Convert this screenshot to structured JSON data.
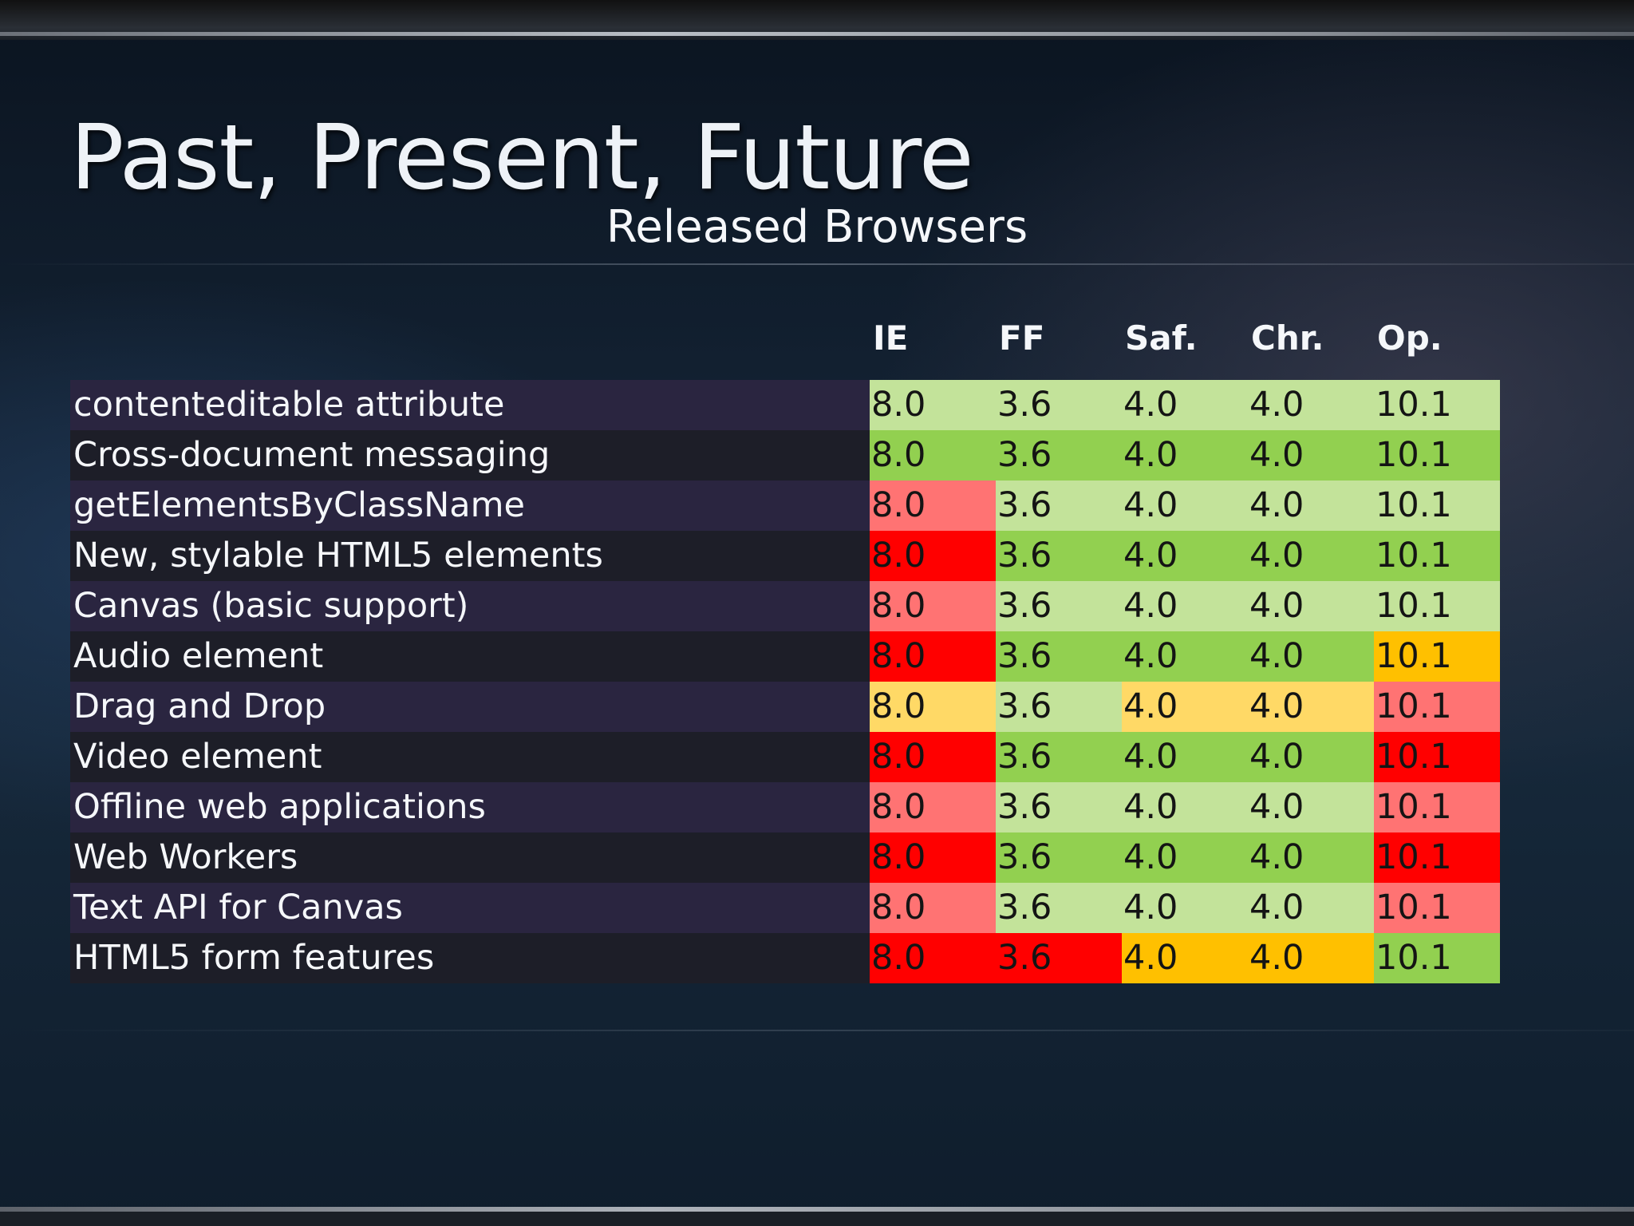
{
  "slide": {
    "title": "Past, Present, Future",
    "subtitle": "Released Browsers"
  },
  "colors": {
    "light_green": "#c3e39a",
    "green": "#92d050",
    "light_red": "#ff7373",
    "red": "#ff0000",
    "yellow": "#ffd966",
    "orange": "#ffc000"
  },
  "table": {
    "columns": [
      "IE",
      "FF",
      "Saf.",
      "Chr.",
      "Op."
    ],
    "rows": [
      {
        "feature": "contenteditable attribute",
        "values": [
          "8.0",
          "3.6",
          "4.0",
          "4.0",
          "10.1"
        ],
        "status": [
          "light_green",
          "light_green",
          "light_green",
          "light_green",
          "light_green"
        ]
      },
      {
        "feature": "Cross-document messaging",
        "values": [
          "8.0",
          "3.6",
          "4.0",
          "4.0",
          "10.1"
        ],
        "status": [
          "green",
          "green",
          "green",
          "green",
          "green"
        ]
      },
      {
        "feature": "getElementsByClassName",
        "values": [
          "8.0",
          "3.6",
          "4.0",
          "4.0",
          "10.1"
        ],
        "status": [
          "light_red",
          "light_green",
          "light_green",
          "light_green",
          "light_green"
        ]
      },
      {
        "feature": "New, stylable HTML5 elements",
        "values": [
          "8.0",
          "3.6",
          "4.0",
          "4.0",
          "10.1"
        ],
        "status": [
          "red",
          "green",
          "green",
          "green",
          "green"
        ]
      },
      {
        "feature": "Canvas (basic support)",
        "values": [
          "8.0",
          "3.6",
          "4.0",
          "4.0",
          "10.1"
        ],
        "status": [
          "light_red",
          "light_green",
          "light_green",
          "light_green",
          "light_green"
        ]
      },
      {
        "feature": "Audio element",
        "values": [
          "8.0",
          "3.6",
          "4.0",
          "4.0",
          "10.1"
        ],
        "status": [
          "red",
          "green",
          "green",
          "green",
          "orange"
        ]
      },
      {
        "feature": "Drag and Drop",
        "values": [
          "8.0",
          "3.6",
          "4.0",
          "4.0",
          "10.1"
        ],
        "status": [
          "yellow",
          "light_green",
          "yellow",
          "yellow",
          "light_red"
        ]
      },
      {
        "feature": "Video element",
        "values": [
          "8.0",
          "3.6",
          "4.0",
          "4.0",
          "10.1"
        ],
        "status": [
          "red",
          "green",
          "green",
          "green",
          "red"
        ]
      },
      {
        "feature": "Offline web applications",
        "values": [
          "8.0",
          "3.6",
          "4.0",
          "4.0",
          "10.1"
        ],
        "status": [
          "light_red",
          "light_green",
          "light_green",
          "light_green",
          "light_red"
        ]
      },
      {
        "feature": "Web Workers",
        "values": [
          "8.0",
          "3.6",
          "4.0",
          "4.0",
          "10.1"
        ],
        "status": [
          "red",
          "green",
          "green",
          "green",
          "red"
        ]
      },
      {
        "feature": "Text API for Canvas",
        "values": [
          "8.0",
          "3.6",
          "4.0",
          "4.0",
          "10.1"
        ],
        "status": [
          "light_red",
          "light_green",
          "light_green",
          "light_green",
          "light_red"
        ]
      },
      {
        "feature": "HTML5 form features",
        "values": [
          "8.0",
          "3.6",
          "4.0",
          "4.0",
          "10.1"
        ],
        "status": [
          "red",
          "red",
          "orange",
          "orange",
          "green"
        ]
      }
    ]
  }
}
